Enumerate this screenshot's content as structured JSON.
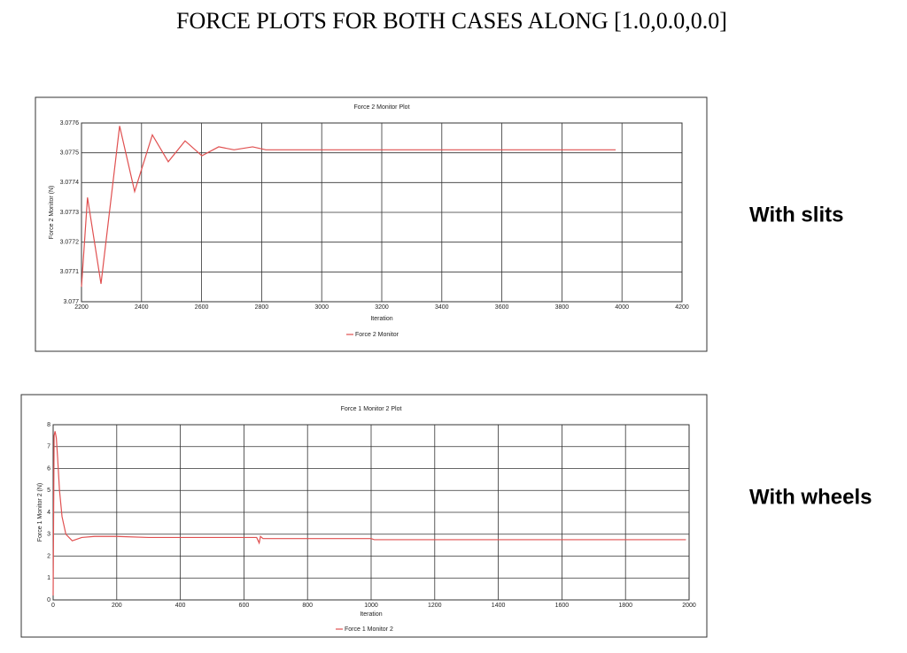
{
  "title": "FORCE PLOTS FOR BOTH CASES ALONG  [1.0,0.0,0.0]",
  "captions": [
    "With slits",
    "With wheels"
  ],
  "chart_data": [
    {
      "type": "line",
      "title": "Force 2 Monitor Plot",
      "xlabel": "Iteration",
      "ylabel": "Force 2 Monitor (N)",
      "x": [
        2200,
        2220,
        2265,
        2327,
        2377,
        2436,
        2489,
        2545,
        2601,
        2657,
        2708,
        2770,
        2814,
        3000,
        3500,
        3979
      ],
      "series": [
        {
          "name": "Force 2 Monitor",
          "color": "#e05050",
          "values": [
            3.07705,
            3.07735,
            3.07706,
            3.07759,
            3.07737,
            3.07756,
            3.07747,
            3.07754,
            3.07749,
            3.07752,
            3.07751,
            3.07752,
            3.07751,
            3.07751,
            3.07751,
            3.07751
          ]
        }
      ],
      "xlim": [
        2200,
        4200
      ],
      "xticks": [
        2200,
        2400,
        2600,
        2800,
        3000,
        3200,
        3400,
        3600,
        3800,
        4000,
        4200
      ],
      "ylim": [
        3.077,
        3.0776
      ],
      "yticks": [
        3.077,
        3.0771,
        3.0772,
        3.0773,
        3.0774,
        3.0775,
        3.0776
      ],
      "grid": true
    },
    {
      "type": "line",
      "title": "Force 1 Monitor 2 Plot",
      "xlabel": "Iteration",
      "ylabel": "Force 1 Monitor 2 (N)",
      "x": [
        0,
        3,
        6,
        10,
        14,
        20,
        28,
        40,
        60,
        90,
        130,
        200,
        300,
        400,
        500,
        640,
        648,
        652,
        660,
        700,
        1000,
        1010,
        1500,
        1990
      ],
      "series": [
        {
          "name": "Force 1 Monitor 2",
          "color": "#e05050",
          "values": [
            0.2,
            7.5,
            7.7,
            7.4,
            6.5,
            5,
            3.8,
            3.0,
            2.7,
            2.85,
            2.9,
            2.9,
            2.85,
            2.85,
            2.85,
            2.85,
            2.6,
            2.9,
            2.8,
            2.8,
            2.8,
            2.75,
            2.75,
            2.75
          ]
        }
      ],
      "xlim": [
        0,
        2000
      ],
      "xticks": [
        0,
        200,
        400,
        600,
        800,
        1000,
        1200,
        1400,
        1600,
        1800,
        2000
      ],
      "ylim": [
        0,
        8
      ],
      "yticks": [
        0,
        1,
        2,
        3,
        4,
        5,
        6,
        7,
        8
      ],
      "grid": true
    }
  ]
}
